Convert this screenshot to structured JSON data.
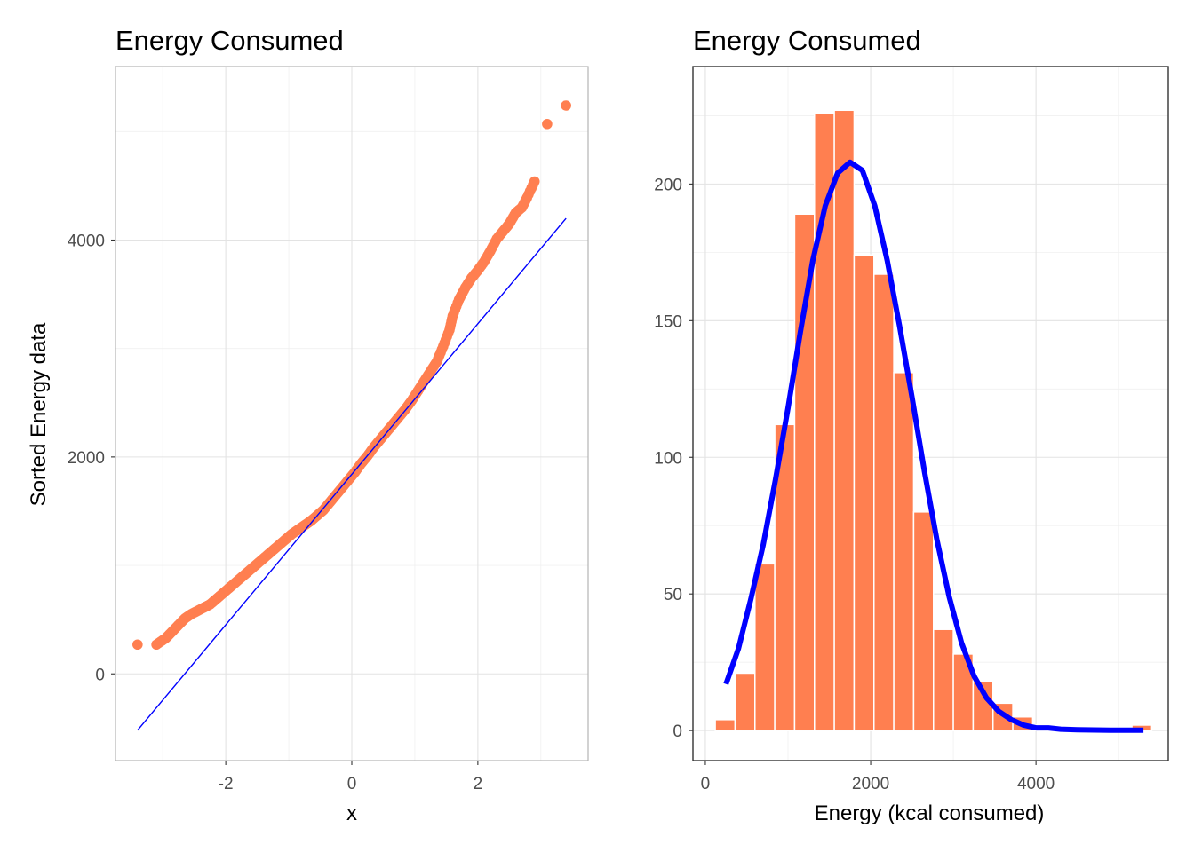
{
  "chart_data": [
    {
      "type": "scatter",
      "title": "Energy Consumed",
      "xlabel": "x",
      "ylabel": "Sorted Energy data",
      "xlim": [
        -3.75,
        3.75
      ],
      "ylim": [
        -800,
        5600
      ],
      "xticks": [
        -2,
        0,
        2
      ],
      "yticks": [
        0,
        2000,
        4000
      ],
      "xtick_labels": [
        "-2",
        "0",
        "2"
      ],
      "ytick_labels": [
        "0",
        "2000",
        "4000"
      ],
      "grid": true,
      "point_color": "#FF7F50",
      "line_color": "#0000FF",
      "reference_line": {
        "x": [
          -3.4,
          3.4
        ],
        "y": [
          -520,
          4200
        ]
      },
      "points": {
        "x": [
          -3.4,
          -3.1,
          -2.95,
          -2.85,
          -2.75,
          -2.65,
          -2.55,
          -2.45,
          -2.35,
          -2.25,
          -2.15,
          -2.05,
          -1.95,
          -1.85,
          -1.75,
          -1.65,
          -1.55,
          -1.45,
          -1.35,
          -1.25,
          -1.15,
          -1.05,
          -0.95,
          -0.85,
          -0.75,
          -0.65,
          -0.55,
          -0.45,
          -0.35,
          -0.25,
          -0.15,
          -0.05,
          0.05,
          0.15,
          0.25,
          0.35,
          0.45,
          0.55,
          0.65,
          0.75,
          0.85,
          0.95,
          1.05,
          1.15,
          1.25,
          1.35,
          1.45,
          1.55,
          1.6,
          1.7,
          1.8,
          1.9,
          2.0,
          2.1,
          2.2,
          2.3,
          2.4,
          2.5,
          2.6,
          2.7,
          2.78,
          2.9,
          3.1,
          3.4
        ],
        "y": [
          270,
          270,
          330,
          390,
          450,
          510,
          550,
          580,
          610,
          640,
          690,
          740,
          790,
          840,
          890,
          940,
          990,
          1040,
          1090,
          1140,
          1190,
          1240,
          1290,
          1330,
          1370,
          1410,
          1460,
          1510,
          1580,
          1650,
          1720,
          1790,
          1860,
          1940,
          2010,
          2090,
          2160,
          2230,
          2300,
          2370,
          2440,
          2520,
          2610,
          2700,
          2790,
          2880,
          3020,
          3170,
          3300,
          3450,
          3560,
          3650,
          3720,
          3800,
          3900,
          4010,
          4080,
          4150,
          4250,
          4300,
          4390,
          4540,
          5070,
          5240
        ]
      }
    },
    {
      "type": "bar",
      "title": "Energy Consumed",
      "xlabel": "Energy (kcal consumed)",
      "ylabel": "",
      "xlim": [
        -150,
        5600
      ],
      "ylim": [
        -11,
        243
      ],
      "xticks": [
        0,
        2000,
        4000
      ],
      "yticks": [
        0,
        50,
        100,
        150,
        200
      ],
      "xtick_labels": [
        "0",
        "2000",
        "4000"
      ],
      "ytick_labels": [
        "0",
        "50",
        "100",
        "150",
        "200"
      ],
      "grid": true,
      "bar_color": "#FF7F50",
      "curve_color": "#0000FF",
      "bin_width": 240,
      "bin_centers": [
        240,
        480,
        720,
        960,
        1200,
        1440,
        1680,
        1920,
        2160,
        2400,
        2640,
        2880,
        3120,
        3360,
        3600,
        3840,
        4080,
        4320,
        4560,
        4800,
        5040,
        5280
      ],
      "counts": [
        4,
        21,
        61,
        112,
        189,
        226,
        227,
        174,
        167,
        131,
        80,
        37,
        28,
        18,
        10,
        5,
        2,
        1,
        1,
        0,
        1,
        2
      ],
      "density_curve": {
        "x": [
          250,
          400,
          550,
          700,
          850,
          1000,
          1150,
          1300,
          1450,
          1600,
          1750,
          1900,
          2050,
          2200,
          2350,
          2500,
          2650,
          2800,
          2950,
          3100,
          3250,
          3400,
          3550,
          3700,
          3850,
          4000,
          4150,
          4300,
          4500,
          4700,
          4900,
          5100,
          5300
        ],
        "y": [
          17,
          30,
          48,
          68,
          92,
          118,
          146,
          172,
          192,
          204,
          208,
          205,
          192,
          172,
          148,
          122,
          95,
          70,
          49,
          32,
          20,
          12,
          7,
          4,
          2,
          1,
          1,
          0.5,
          0.3,
          0.2,
          0.1,
          0.1,
          0.1
        ]
      }
    }
  ]
}
